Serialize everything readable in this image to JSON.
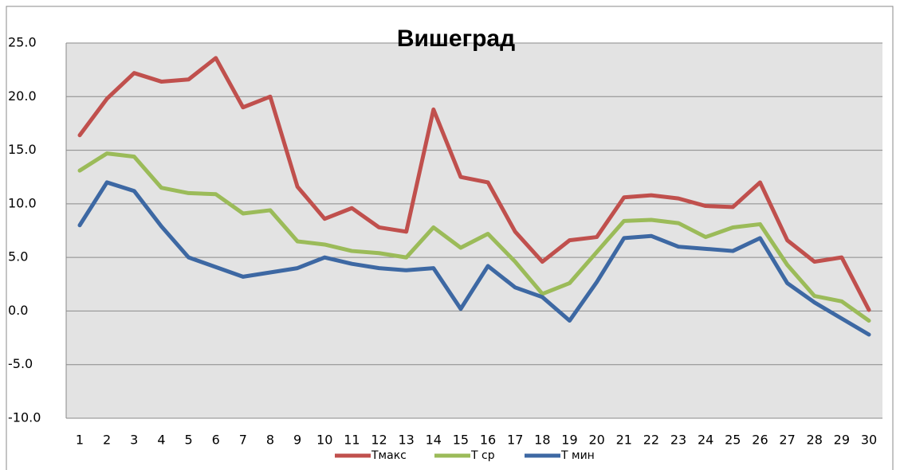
{
  "chart_data": {
    "type": "line",
    "title": "Вишеград",
    "categories": [
      "1",
      "2",
      "3",
      "4",
      "5",
      "6",
      "7",
      "8",
      "9",
      "10",
      "11",
      "12",
      "13",
      "14",
      "15",
      "16",
      "17",
      "18",
      "19",
      "20",
      "21",
      "22",
      "23",
      "24",
      "25",
      "26",
      "27",
      "28",
      "29",
      "30"
    ],
    "series": [
      {
        "name": "Тмакс",
        "color": "#c0504d",
        "values": [
          16.4,
          19.8,
          22.2,
          21.4,
          21.6,
          23.6,
          19.0,
          20.0,
          11.6,
          8.6,
          9.6,
          7.8,
          7.4,
          18.8,
          12.5,
          12.0,
          7.4,
          4.6,
          6.6,
          6.9,
          10.6,
          10.8,
          10.5,
          9.8,
          9.7,
          12.0,
          6.6,
          4.6,
          5.0,
          0.1
        ]
      },
      {
        "name": "Т ср",
        "color": "#9bbb59",
        "values": [
          13.1,
          14.7,
          14.4,
          11.5,
          11.0,
          10.9,
          9.1,
          9.4,
          6.5,
          6.2,
          5.6,
          5.4,
          5.0,
          7.8,
          5.9,
          7.2,
          4.6,
          1.6,
          2.6,
          5.5,
          8.4,
          8.5,
          8.2,
          6.9,
          7.8,
          8.1,
          4.3,
          1.4,
          0.9,
          -0.9
        ]
      },
      {
        "name": "Т мин",
        "color": "#3d68a3",
        "values": [
          8.0,
          12.0,
          11.2,
          7.9,
          5.0,
          4.1,
          3.2,
          3.6,
          4.0,
          5.0,
          4.4,
          4.0,
          3.8,
          4.0,
          0.2,
          4.2,
          2.2,
          1.3,
          -0.9,
          2.7,
          6.8,
          7.0,
          6.0,
          5.8,
          5.6,
          6.8,
          2.6,
          0.8,
          -0.7,
          -2.2
        ]
      }
    ],
    "ylim": [
      -10,
      25
    ],
    "yticks": [
      {
        "value": -10,
        "label": "-10.0"
      },
      {
        "value": -5,
        "label": "-5.0"
      },
      {
        "value": 0,
        "label": "0.0"
      },
      {
        "value": 5,
        "label": "5.0"
      },
      {
        "value": 10,
        "label": "10.0"
      },
      {
        "value": 15,
        "label": "15.0"
      },
      {
        "value": 20,
        "label": "20.0"
      },
      {
        "value": 25,
        "label": "25.0"
      }
    ],
    "grid": true,
    "legend": "bottom"
  }
}
